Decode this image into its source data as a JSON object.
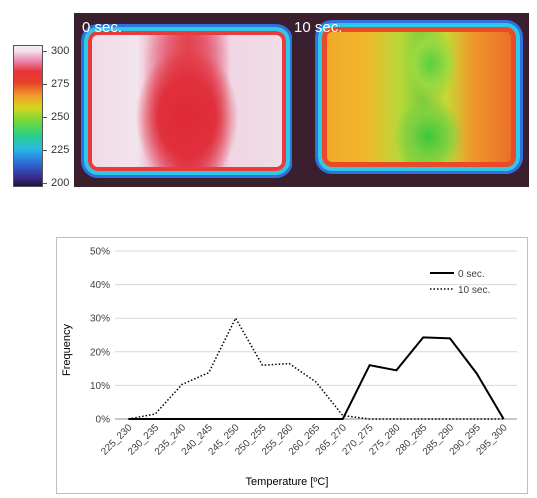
{
  "colorbar": {
    "ticks": [
      "300",
      "275",
      "250",
      "225",
      "200"
    ],
    "values": [
      300,
      275,
      250,
      225,
      200
    ],
    "range": [
      200,
      300
    ]
  },
  "thermal_images": [
    {
      "label": "0 sec."
    },
    {
      "label": "10 sec."
    }
  ],
  "chart_data": {
    "type": "line",
    "categories": [
      "225_230",
      "230_235",
      "235_240",
      "240_245",
      "245_250",
      "250_255",
      "255_260",
      "260_265",
      "265_270",
      "270_275",
      "275_280",
      "280_285",
      "285_290",
      "290_295",
      "295_300"
    ],
    "series": [
      {
        "name": "0 sec.",
        "style": "solid",
        "color": "#000000",
        "values": [
          0,
          0,
          0,
          0,
          0,
          0,
          0,
          0,
          0,
          16,
          14.5,
          24.3,
          24,
          13.5,
          0
        ]
      },
      {
        "name": "10 sec.",
        "style": "dotted",
        "color": "#000000",
        "values": [
          0,
          1.5,
          10.3,
          13.8,
          30,
          16,
          16.5,
          11,
          1,
          0,
          0,
          0,
          0,
          0,
          0
        ]
      }
    ],
    "yticks": [
      "0%",
      "10%",
      "20%",
      "30%",
      "40%",
      "50%"
    ],
    "ylim": [
      0,
      50
    ],
    "xlabel": "Temperature [ºC]",
    "ylabel": "Frequency",
    "title": "",
    "grid": "horizontal",
    "legend_position": "top-right"
  }
}
